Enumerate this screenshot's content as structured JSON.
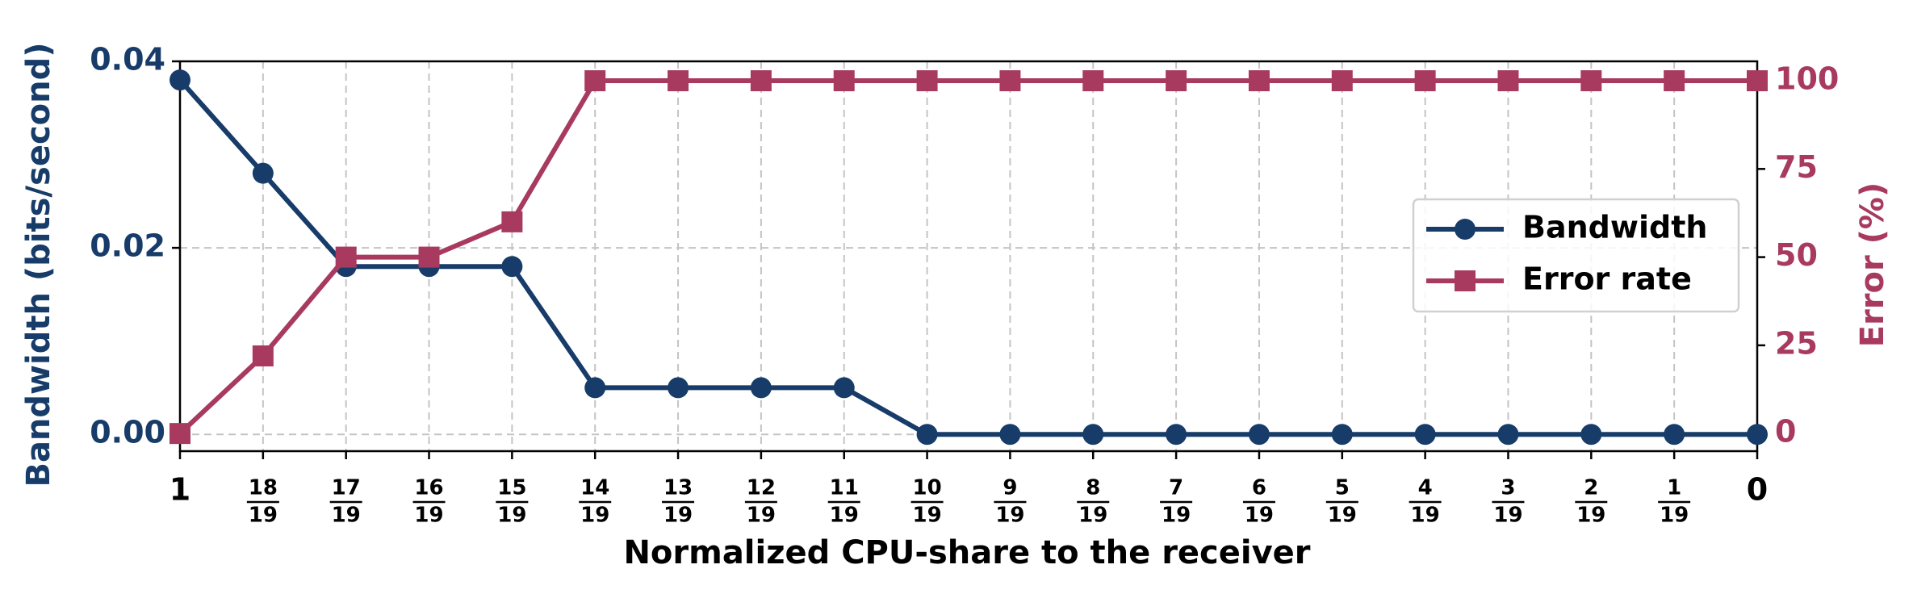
{
  "chart_data": {
    "type": "line",
    "xlabel": "Normalized CPU-share to the receiver",
    "ylabel": "Bandwidth (bits/second)",
    "y2label": "Error (%)",
    "categories": [
      "1",
      [
        "18",
        "19"
      ],
      [
        "17",
        "19"
      ],
      [
        "16",
        "19"
      ],
      [
        "15",
        "19"
      ],
      [
        "14",
        "19"
      ],
      [
        "13",
        "19"
      ],
      [
        "12",
        "19"
      ],
      [
        "11",
        "19"
      ],
      [
        "10",
        "19"
      ],
      [
        "9",
        "19"
      ],
      [
        "8",
        "19"
      ],
      [
        "7",
        "19"
      ],
      [
        "6",
        "19"
      ],
      [
        "5",
        "19"
      ],
      [
        "4",
        "19"
      ],
      [
        "3",
        "19"
      ],
      [
        "2",
        "19"
      ],
      [
        "1",
        "19"
      ],
      "0"
    ],
    "series": [
      {
        "name": "Bandwidth",
        "color": "#173c69",
        "marker": "circle",
        "values": [
          0.038,
          0.028,
          0.018,
          0.018,
          0.018,
          0.005,
          0.005,
          0.005,
          0.005,
          0,
          0,
          0,
          0,
          0,
          0,
          0,
          0,
          0,
          0,
          0
        ]
      },
      {
        "name": "Error rate",
        "color": "#a83a60",
        "marker": "square",
        "axis": "y2",
        "values": [
          0,
          22,
          50,
          50,
          60,
          100,
          100,
          100,
          100,
          100,
          100,
          100,
          100,
          100,
          100,
          100,
          100,
          100,
          100,
          100
        ]
      }
    ],
    "ylim": [
      -0.0018,
      0.04
    ],
    "yticks": [
      {
        "value": 0,
        "label": "0.00"
      },
      0.02,
      0.04
    ],
    "y2lim": [
      -5,
      105.5
    ],
    "y2ticks": [
      0,
      25,
      50,
      75,
      100
    ],
    "grid": true,
    "legend": "center right"
  }
}
